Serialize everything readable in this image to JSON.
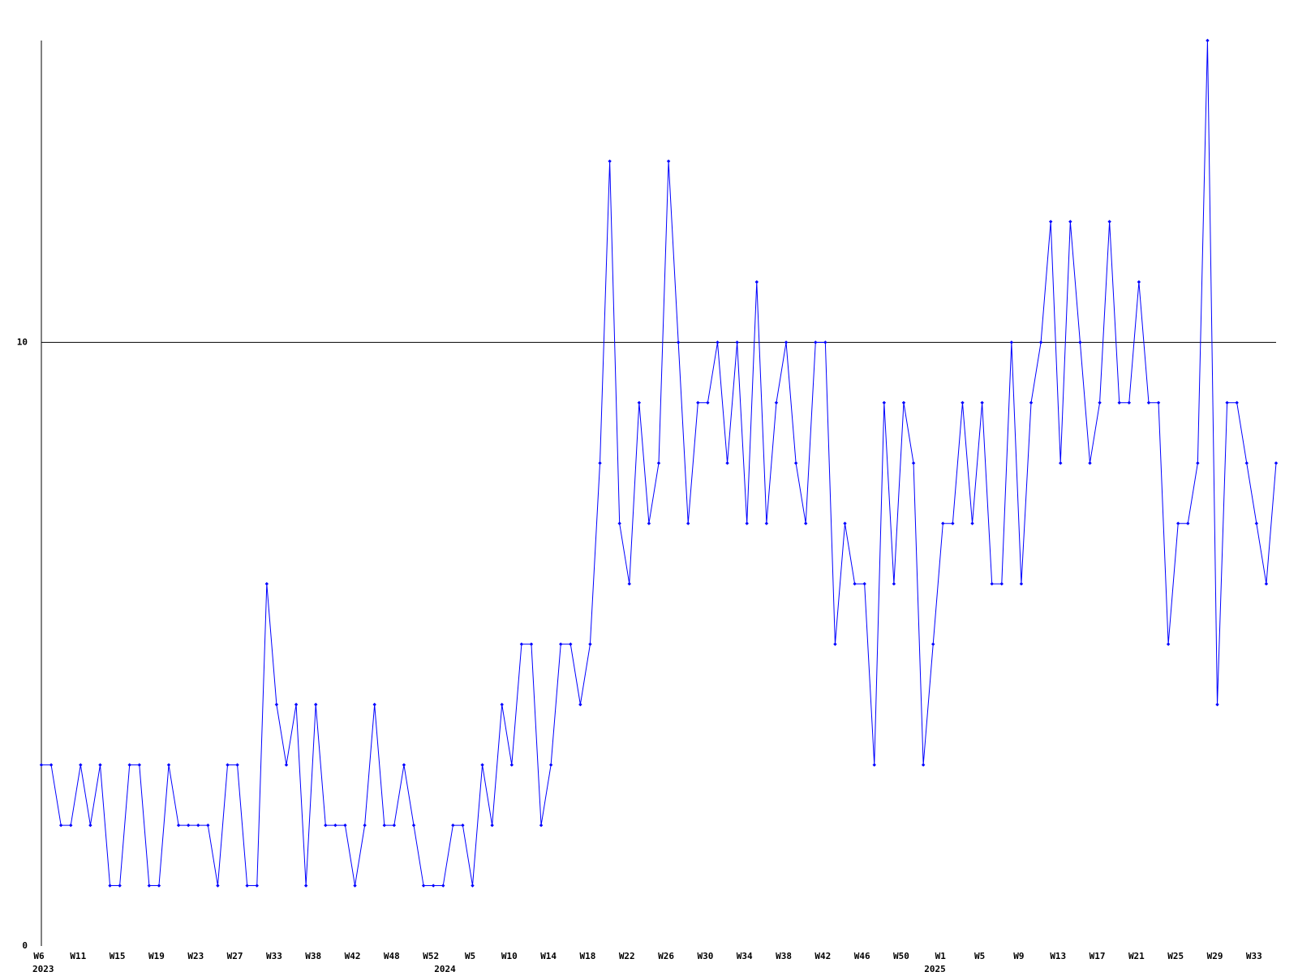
{
  "chart_data": {
    "type": "line",
    "categories": [
      "W6",
      null,
      null,
      null,
      "W11",
      null,
      null,
      null,
      "W15",
      null,
      null,
      null,
      "W19",
      null,
      null,
      null,
      "W23",
      null,
      null,
      null,
      "W27",
      null,
      null,
      null,
      "W33",
      null,
      null,
      null,
      "W38",
      null,
      null,
      null,
      "W42",
      null,
      null,
      null,
      "W48",
      null,
      null,
      null,
      "W52",
      null,
      null,
      null,
      "W5",
      null,
      null,
      null,
      "W10",
      null,
      null,
      null,
      "W14",
      null,
      null,
      null,
      "W18",
      null,
      null,
      null,
      "W22",
      null,
      null,
      null,
      "W26",
      null,
      null,
      null,
      "W30",
      null,
      null,
      null,
      "W34",
      null,
      null,
      null,
      "W38",
      null,
      null,
      null,
      "W42",
      null,
      null,
      null,
      "W46",
      null,
      null,
      null,
      "W50",
      null,
      null,
      null,
      "W1",
      null,
      null,
      null,
      "W5",
      null,
      null,
      null,
      "W9",
      null,
      null,
      null,
      "W13",
      null,
      null,
      null,
      "W17",
      null,
      null,
      null,
      "W21",
      null,
      null,
      null,
      "W25",
      null,
      null,
      null,
      "W29",
      null,
      null,
      null,
      "W33",
      null,
      null
    ],
    "x_groups": [
      {
        "label": "2023",
        "start": 0
      },
      {
        "label": "2024",
        "start": 41
      },
      {
        "label": "2025",
        "start": 91
      }
    ],
    "values": [
      3,
      3,
      2,
      2,
      3,
      2,
      3,
      1,
      1,
      3,
      3,
      1,
      1,
      3,
      2,
      2,
      2,
      2,
      1,
      3,
      3,
      1,
      1,
      6,
      4,
      3,
      4,
      1,
      4,
      2,
      2,
      2,
      1,
      2,
      4,
      2,
      2,
      3,
      2,
      1,
      1,
      1,
      2,
      2,
      1,
      3,
      2,
      4,
      3,
      5,
      5,
      2,
      3,
      5,
      5,
      4,
      5,
      8,
      13,
      7,
      6,
      9,
      7,
      8,
      13,
      10,
      7,
      9,
      9,
      10,
      8,
      10,
      7,
      11,
      7,
      9,
      10,
      8,
      7,
      10,
      10,
      5,
      7,
      6,
      6,
      3,
      9,
      6,
      9,
      8,
      3,
      5,
      7,
      7,
      9,
      7,
      9,
      6,
      6,
      10,
      6,
      9,
      10,
      12,
      8,
      12,
      10,
      8,
      9,
      12,
      9,
      9,
      11,
      9,
      9,
      5,
      7,
      7,
      8,
      15,
      4,
      9,
      9,
      8,
      7,
      6,
      8
    ],
    "color": "#0000ff",
    "ylim": [
      0,
      15
    ],
    "yticks": [
      0,
      10
    ],
    "grid": true
  }
}
